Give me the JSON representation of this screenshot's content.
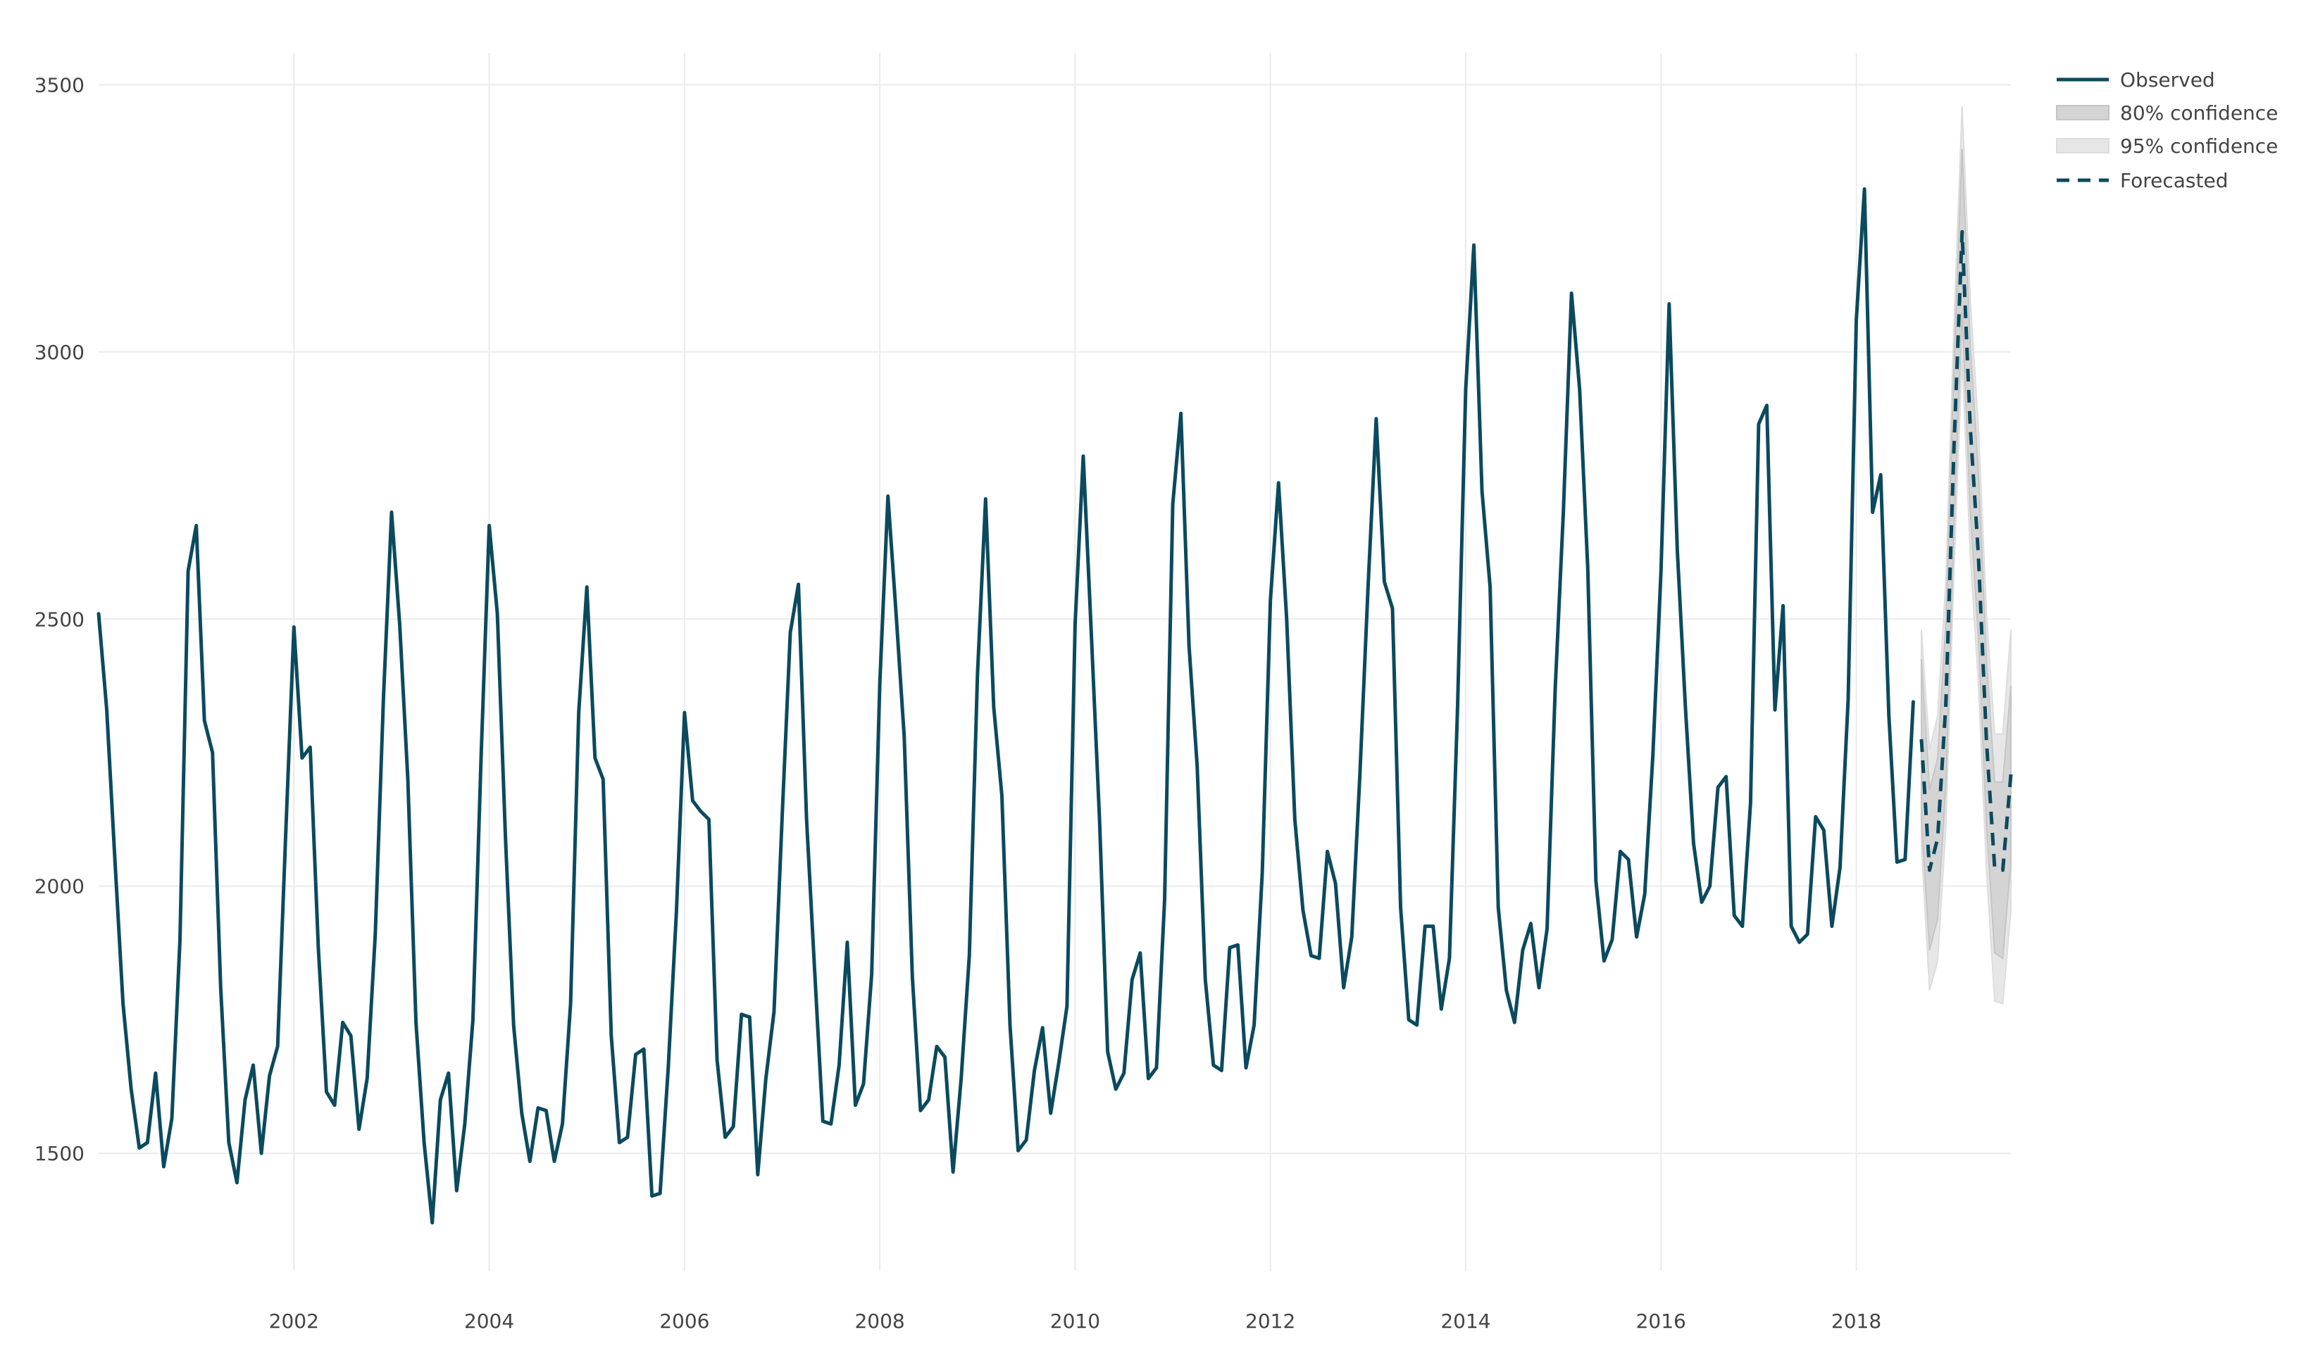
{
  "chart_data": {
    "type": "line",
    "title": "",
    "xlabel": "",
    "ylabel": "",
    "xlim": [
      2000.0,
      2019.583
    ],
    "ylim": [
      1280,
      3560
    ],
    "x_ticks": [
      2002,
      2004,
      2006,
      2008,
      2010,
      2012,
      2014,
      2016,
      2018
    ],
    "x_tick_labels": [
      "2002",
      "2004",
      "2006",
      "2008",
      "2010",
      "2012",
      "2014",
      "2016",
      "2018"
    ],
    "y_ticks": [
      1500,
      2000,
      2500,
      3000,
      3500
    ],
    "y_tick_labels": [
      "1500",
      "2000",
      "2500",
      "3000",
      "3500"
    ],
    "grid": true,
    "legend_position": "top-right",
    "colors": {
      "observed": "#0b4a5e",
      "forecast": "#0b4a5e",
      "band80": "#d4d4d4",
      "band95": "#e6e6e6"
    },
    "series": [
      {
        "name": "Observed",
        "style": "solid",
        "start": "2000-01",
        "frequency": "monthly",
        "values": [
          2510,
          2330,
          2050,
          1780,
          1620,
          1510,
          1520,
          1650,
          1475,
          1565,
          1900,
          2590,
          2675,
          2310,
          2250,
          1810,
          1520,
          1445,
          1600,
          1665,
          1500,
          1645,
          1700,
          2100,
          2485,
          2240,
          2260,
          1885,
          1615,
          1590,
          1745,
          1720,
          1545,
          1640,
          1910,
          2350,
          2700,
          2490,
          2200,
          1745,
          1520,
          1370,
          1600,
          1650,
          1430,
          1555,
          1750,
          2240,
          2675,
          2510,
          2090,
          1740,
          1575,
          1485,
          1585,
          1580,
          1485,
          1555,
          1780,
          2325,
          2560,
          2240,
          2200,
          1720,
          1520,
          1530,
          1685,
          1695,
          1420,
          1425,
          1660,
          1950,
          2325,
          2160,
          2140,
          2125,
          1675,
          1530,
          1550,
          1760,
          1755,
          1460,
          1640,
          1765,
          2130,
          2475,
          2565,
          2125,
          1840,
          1560,
          1555,
          1665,
          1895,
          1590,
          1630,
          1835,
          2380,
          2730,
          2510,
          2280,
          1830,
          1580,
          1600,
          1700,
          1680,
          1465,
          1640,
          1870,
          2395,
          2725,
          2335,
          2170,
          1740,
          1505,
          1525,
          1655,
          1735,
          1575,
          1670,
          1775,
          2490,
          2805,
          2470,
          2125,
          1690,
          1620,
          1650,
          1825,
          1875,
          1640,
          1660,
          1975,
          2715,
          2885,
          2450,
          2225,
          1825,
          1665,
          1655,
          1885,
          1890,
          1660,
          1740,
          2025,
          2535,
          2755,
          2500,
          2125,
          1955,
          1870,
          1865,
          2065,
          2005,
          1810,
          1905,
          2210,
          2560,
          2875,
          2570,
          2520,
          1960,
          1750,
          1740,
          1925,
          1925,
          1770,
          1865,
          2335,
          2930,
          3200,
          2740,
          2560,
          1960,
          1805,
          1745,
          1880,
          1930,
          1810,
          1920,
          2370,
          2700,
          3110,
          2930,
          2595,
          2010,
          1860,
          1900,
          2065,
          2050,
          1905,
          1985,
          2245,
          2590,
          3090,
          2630,
          2335,
          2080,
          1970,
          2000,
          2185,
          2205,
          1945,
          1925,
          2155,
          2865,
          2900,
          2330,
          2525,
          1925,
          1895,
          1910,
          2130,
          2105,
          1925,
          2035,
          2350,
          3060,
          3305,
          2700,
          2770,
          2320,
          2045,
          2050,
          2345
        ]
      },
      {
        "name": "Forecasted",
        "style": "dashed",
        "start": "2018-09",
        "frequency": "monthly",
        "values": [
          2275,
          2030,
          2090,
          2340,
          2820,
          3225,
          2860,
          2620,
          2270,
          2035,
          2030,
          2210
        ]
      }
    ],
    "bands": [
      {
        "name": "80% confidence",
        "start": "2018-09",
        "lower": [
          2125,
          1880,
          1940,
          2190,
          2670,
          3075,
          2705,
          2465,
          2115,
          1875,
          1865,
          2045
        ],
        "upper": [
          2425,
          2180,
          2240,
          2490,
          2970,
          3380,
          3015,
          2775,
          2425,
          2195,
          2195,
          2375
        ]
      },
      {
        "name": "95% confidence",
        "start": "2018-09",
        "lower": [
          2075,
          1805,
          1860,
          2110,
          2590,
          2990,
          2620,
          2380,
          2030,
          1785,
          1780,
          1955
        ],
        "upper": [
          2480,
          2255,
          2320,
          2570,
          3050,
          3460,
          3100,
          2860,
          2510,
          2285,
          2285,
          2480
        ]
      }
    ]
  }
}
